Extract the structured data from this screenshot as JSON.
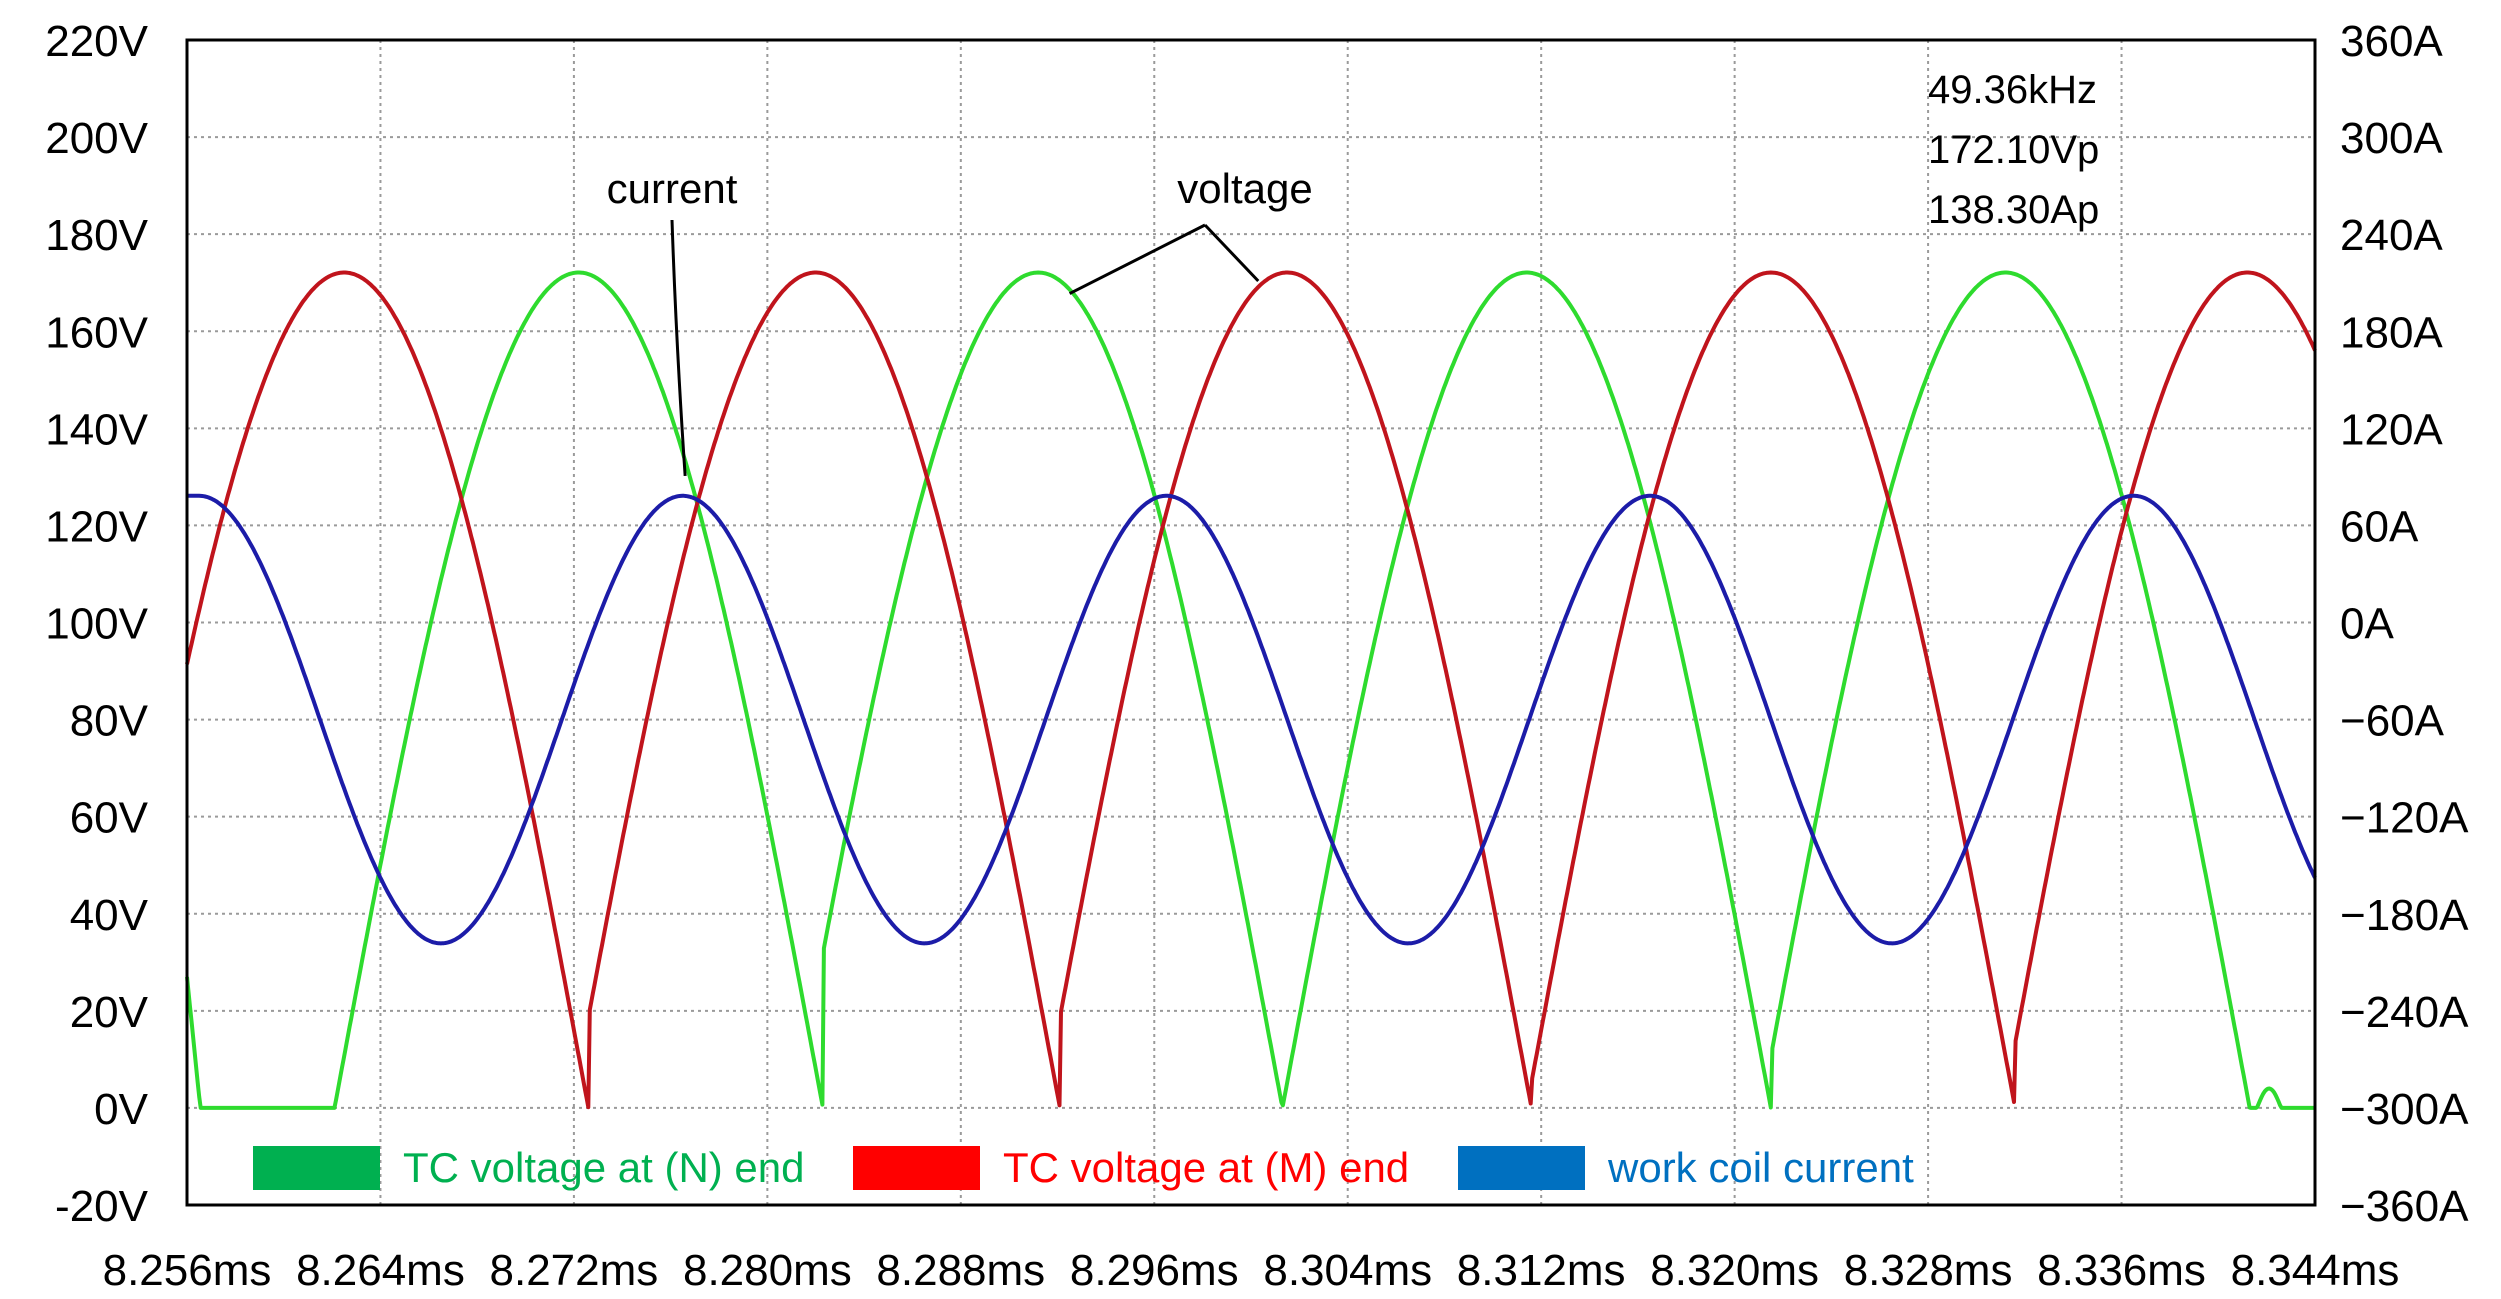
{
  "chart_data": {
    "type": "line",
    "title": "",
    "xlabel": "",
    "ylabel": "",
    "x_unit": "ms",
    "xlim": [
      8.256,
      8.344
    ],
    "x_ticks": [
      "8.256ms",
      "8.264ms",
      "8.272ms",
      "8.280ms",
      "8.288ms",
      "8.296ms",
      "8.304ms",
      "8.312ms",
      "8.320ms",
      "8.328ms",
      "8.336ms",
      "8.344ms"
    ],
    "y_left": {
      "unit": "V",
      "ylim": [
        -20,
        220
      ],
      "ticks": [
        "220V",
        "200V",
        "180V",
        "160V",
        "140V",
        "120V",
        "100V",
        "80V",
        "60V",
        "40V",
        "20V",
        "0V",
        "-20V"
      ]
    },
    "y_right": {
      "unit": "A",
      "ylim": [
        -360,
        360
      ],
      "ticks": [
        "360A",
        "300A",
        "240A",
        "180A",
        "120A",
        "60A",
        "0A",
        "−60A",
        "−120A",
        "−180A",
        "−240A",
        "−300A",
        "−360A"
      ]
    },
    "grid": true,
    "legend_position": "bottom-inside",
    "series": [
      {
        "name": "TC voltage at (N) end",
        "axis": "left",
        "color": "#2edb2e",
        "legend_color": "#00b050",
        "label_color": "#00b050",
        "kind": "half-wave-rectified",
        "amplitude": 172.1,
        "peaks_ms": [
          8.2722,
          8.2912,
          8.3114,
          8.3312
        ],
        "start": [
          8.256,
          27
        ]
      },
      {
        "name": "TC voltage at (M) end",
        "axis": "left",
        "color": "#c0141c",
        "legend_color": "#ff0000",
        "label_color": "#ff0000",
        "kind": "half-wave-rectified",
        "amplitude": 172.1,
        "peaks_ms": [
          8.2625,
          8.282,
          8.3015,
          8.3215,
          8.3412
        ],
        "end": [
          8.344,
          155
        ]
      },
      {
        "name": "work coil current",
        "axis": "right",
        "color": "#1c1ca8",
        "legend_color": "#0070c0",
        "label_color": "#0070c0",
        "kind": "sinusoid",
        "amplitude": 138.3,
        "offset": -60,
        "frequency_khz": 49.36,
        "peaks_ms": [
          8.2565,
          8.2765,
          8.2965,
          8.3165,
          8.3365
        ],
        "troughs_ms": [
          8.2665,
          8.2865,
          8.3065,
          8.3265
        ]
      }
    ],
    "readout": [
      "49.36kHz",
      "172.10Vp",
      "138.30Ap"
    ],
    "annotations": [
      {
        "text": "current",
        "target_series": "work coil current",
        "target_x_ms": 8.2766
      },
      {
        "text": "voltage",
        "target_series": "TC voltage at (N) end",
        "target_x_ms": 8.2925
      },
      {
        "text": "voltage",
        "target_series": "TC voltage at (M) end",
        "target_x_ms": 8.3003
      }
    ]
  }
}
